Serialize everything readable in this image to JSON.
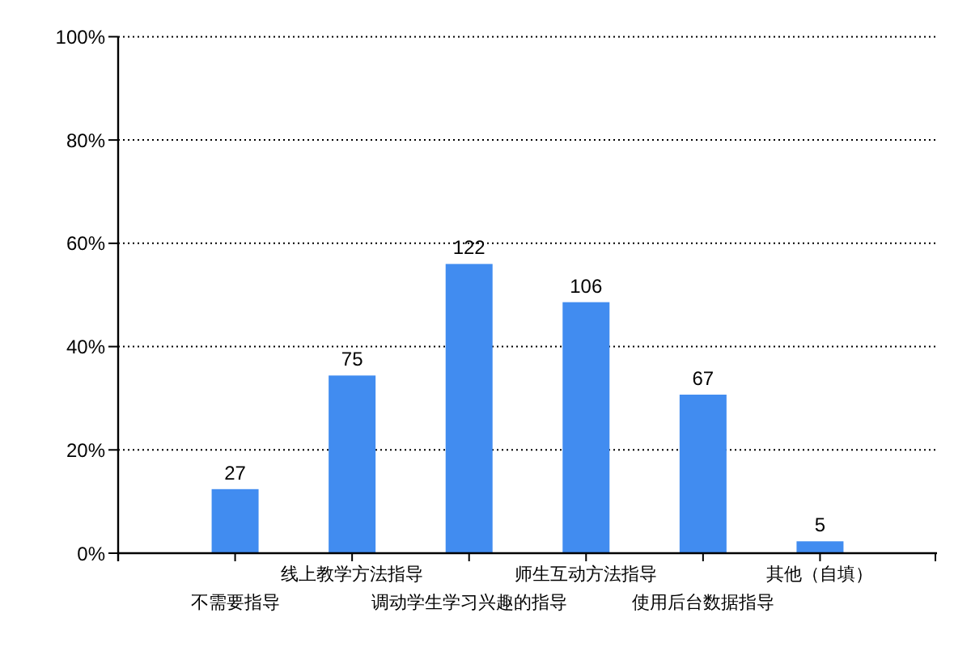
{
  "chart_data": {
    "type": "bar",
    "categories": [
      "不需要指导",
      "线上教学方法指导",
      "调动学生学习兴趣的指导",
      "师生互动方法指导",
      "使用后台数据指导",
      "其他（自填）"
    ],
    "values": [
      12.4,
      34.4,
      56.0,
      48.6,
      30.7,
      2.3
    ],
    "annotations": [
      {
        "text": "27",
        "x": "不需要指导",
        "y": 12.4
      },
      {
        "text": "75",
        "x": "线上教学方法指导",
        "y": 34.4
      },
      {
        "text": "122",
        "x": "调动学生学习兴趣的指导",
        "y": 56.0
      },
      {
        "text": "106",
        "x": "师生互动方法指导",
        "y": 48.6
      },
      {
        "text": "67",
        "x": "使用后台数据指导",
        "y": 30.7
      },
      {
        "text": "5",
        "x": "其他（自填）",
        "y": 2.3
      }
    ],
    "color": "#418cf0",
    "ylim": [
      0,
      100
    ],
    "yticks": [
      {
        "value": 0,
        "label": "0%"
      },
      {
        "value": 20,
        "label": "20%"
      },
      {
        "value": 40,
        "label": "40%"
      },
      {
        "value": 60,
        "label": "60%"
      },
      {
        "value": 80,
        "label": "80%"
      },
      {
        "value": 100,
        "label": "100%"
      }
    ],
    "grid": "y"
  }
}
